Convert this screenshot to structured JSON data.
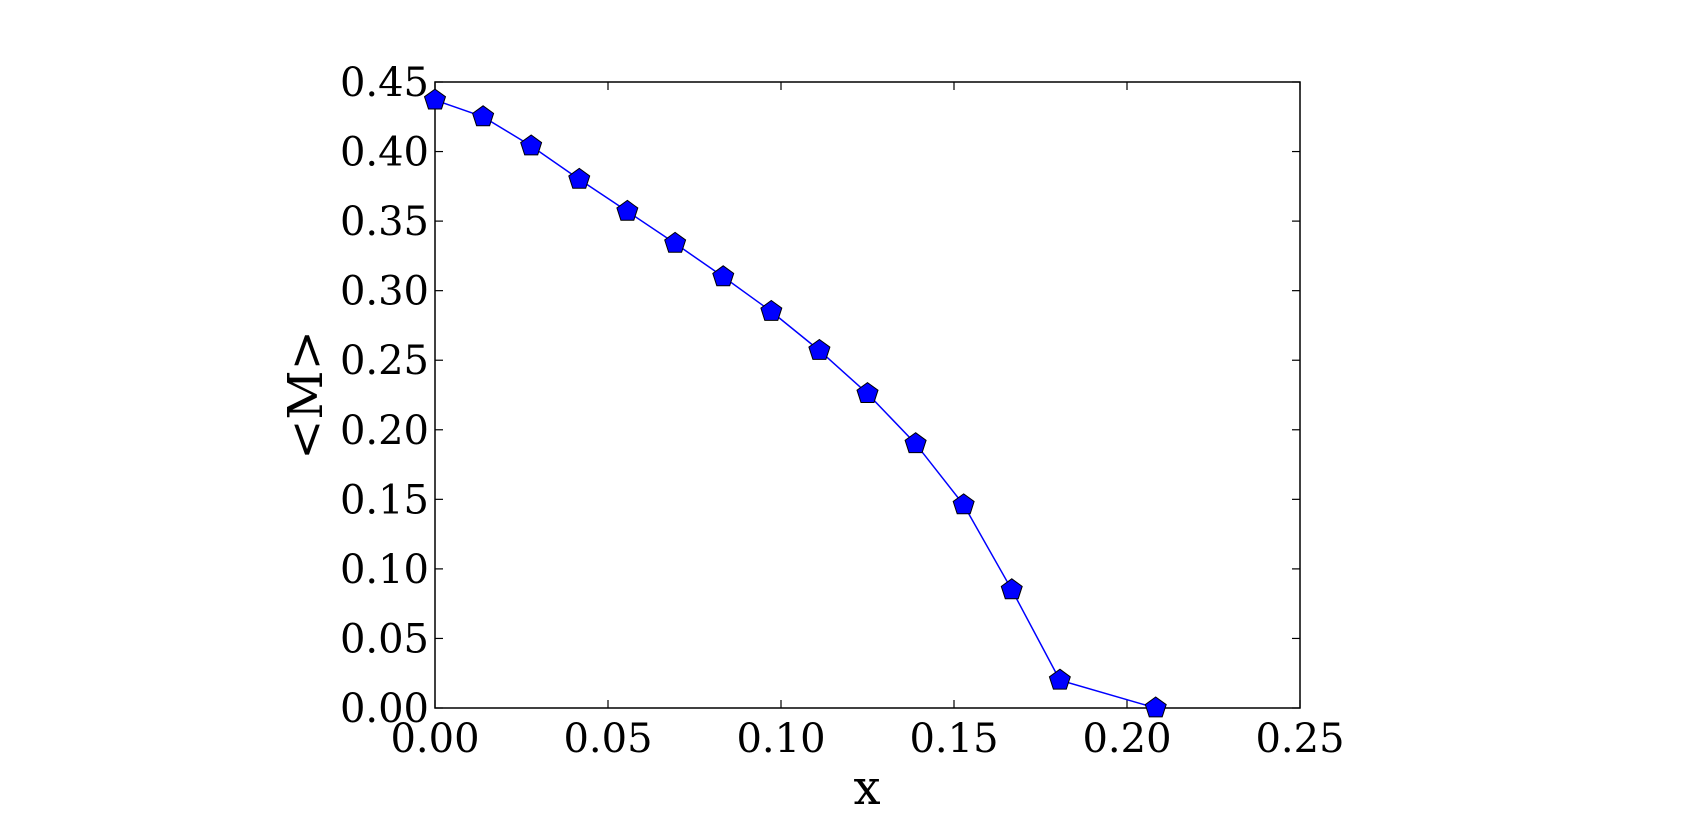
{
  "chart_data": {
    "type": "line",
    "title": "",
    "xlabel": "x",
    "ylabel": "<M>",
    "xlim": [
      0.0,
      0.25
    ],
    "ylim": [
      0.0,
      0.45
    ],
    "grid": false,
    "x_ticks": [
      "0.00",
      "0.05",
      "0.10",
      "0.15",
      "0.20",
      "0.25"
    ],
    "y_ticks": [
      "0.00",
      "0.05",
      "0.10",
      "0.15",
      "0.20",
      "0.25",
      "0.30",
      "0.35",
      "0.40",
      "0.45"
    ],
    "series": [
      {
        "color": "#0000ff",
        "marker": "pentagon",
        "x": [
          0.0,
          0.0139,
          0.0278,
          0.0417,
          0.0556,
          0.0694,
          0.0833,
          0.0972,
          0.1111,
          0.125,
          0.1389,
          0.1528,
          0.1667,
          0.1806,
          0.2083
        ],
        "y": [
          0.437,
          0.425,
          0.404,
          0.38,
          0.357,
          0.334,
          0.31,
          0.285,
          0.257,
          0.226,
          0.19,
          0.146,
          0.085,
          0.02,
          0.0
        ]
      }
    ]
  }
}
